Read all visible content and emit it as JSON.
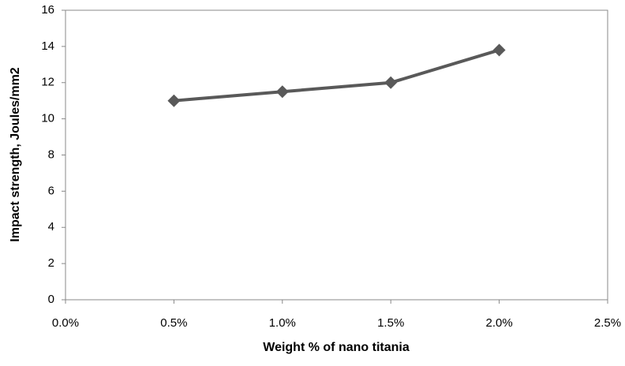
{
  "chart_data": {
    "type": "line",
    "x_label": "Weight % of nano titania",
    "y_label": "Impact strength, Joules/mm2",
    "x": [
      0.5,
      1.0,
      1.5,
      2.0
    ],
    "series": [
      {
        "name": "Impact strength",
        "color": "#595959",
        "values": [
          11.0,
          11.5,
          12.0,
          13.8
        ]
      }
    ],
    "xlim": [
      0,
      2.5
    ],
    "xticks": [
      {
        "value": 0,
        "label": "0.0%"
      },
      {
        "value": 0.5,
        "label": "0.5%"
      },
      {
        "value": 1.0,
        "label": "1.0%"
      },
      {
        "value": 1.5,
        "label": "1.5%"
      },
      {
        "value": 2.0,
        "label": "2.0%"
      },
      {
        "value": 2.5,
        "label": "2.5%"
      }
    ],
    "ylim": [
      0,
      16
    ],
    "yticks": [
      0,
      2,
      4,
      6,
      8,
      10,
      12,
      14,
      16
    ],
    "grid": false
  }
}
